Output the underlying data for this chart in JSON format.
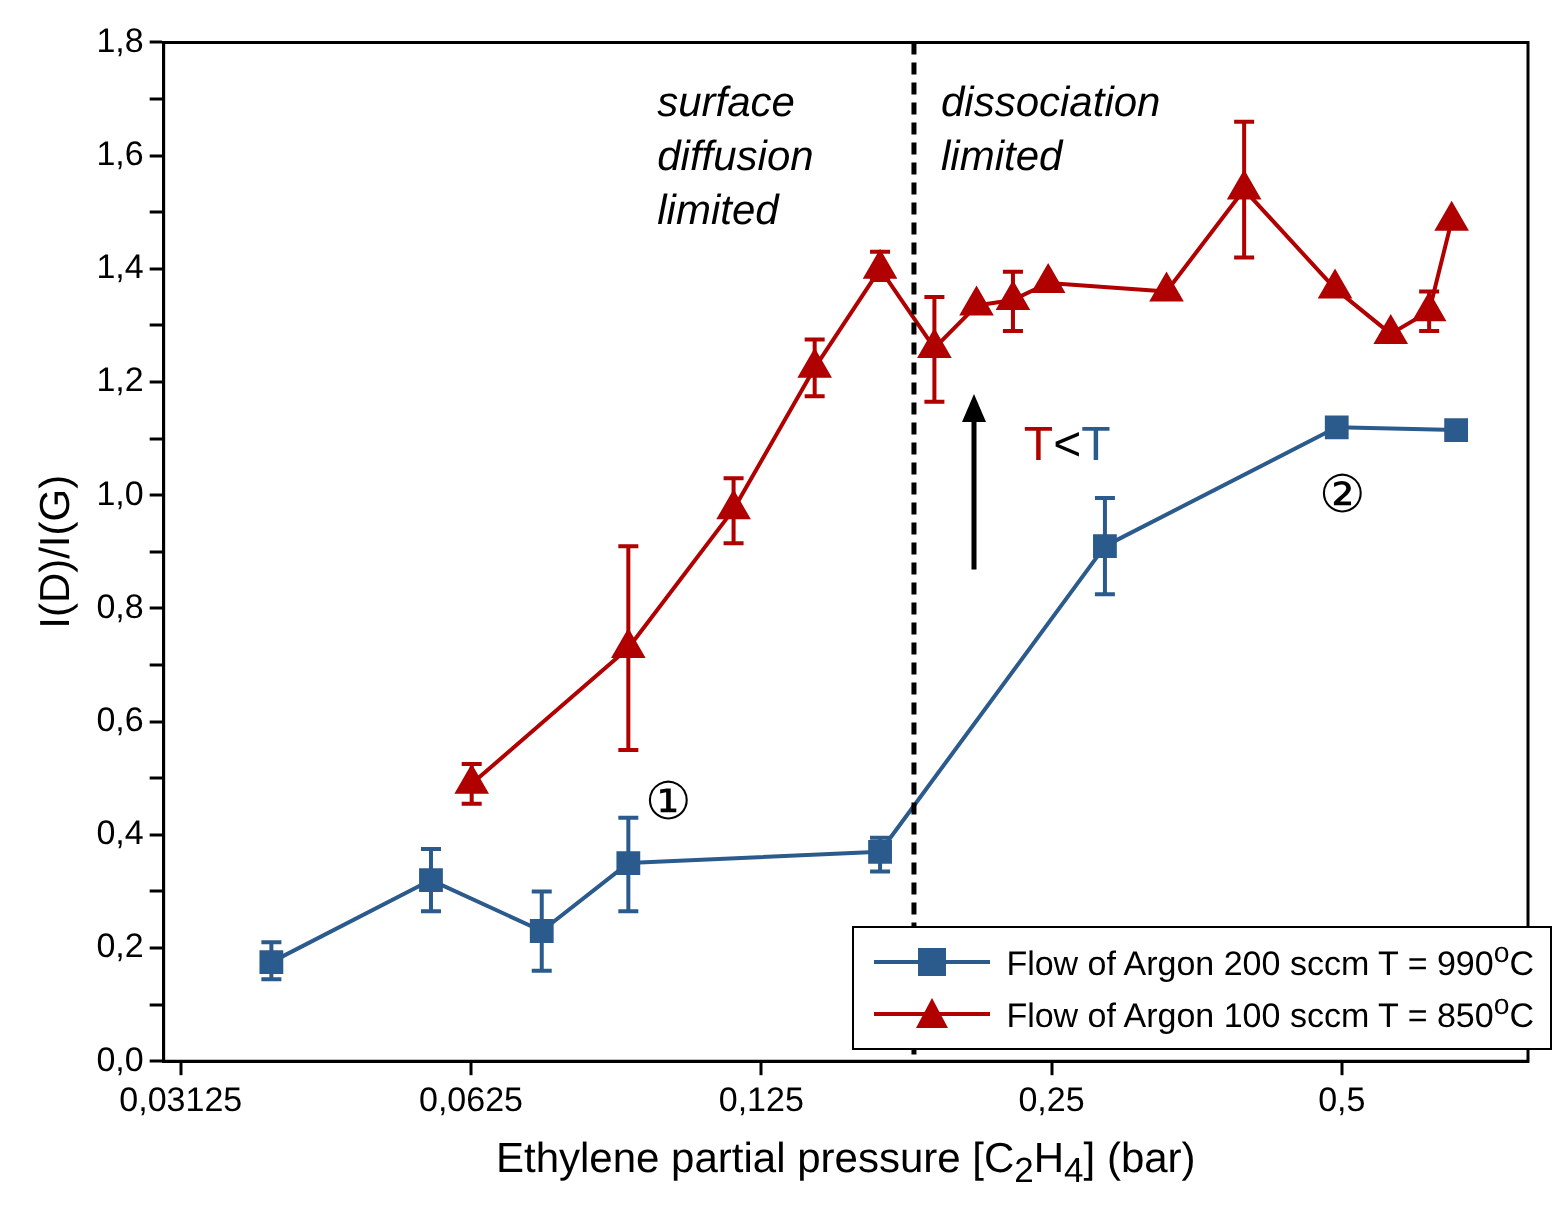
{
  "chart_data": {
    "type": "line",
    "xlabel": "Ethylene partial pressure [C$_{2}$H$_{4}$] (bar)",
    "ylabel": "I(D)/I(G)",
    "log": "x",
    "xlim": [
      0.03,
      0.78
    ],
    "xticks": [
      {
        "value": 0.03125,
        "label": "0,03125"
      },
      {
        "value": 0.0625,
        "label": "0,0625"
      },
      {
        "value": 0.125,
        "label": "0,125"
      },
      {
        "value": 0.25,
        "label": "0,25"
      },
      {
        "value": 0.5,
        "label": "0,5"
      }
    ],
    "ylim": [
      0,
      1.8
    ],
    "yticks": [
      {
        "value": 0,
        "label": "0,0"
      },
      {
        "value": 0.1,
        "label": null
      },
      {
        "value": 0.2,
        "label": "0,2"
      },
      {
        "value": 0.3,
        "label": null
      },
      {
        "value": 0.4,
        "label": "0,4"
      },
      {
        "value": 0.5,
        "label": null
      },
      {
        "value": 0.6,
        "label": "0,6"
      },
      {
        "value": 0.7,
        "label": null
      },
      {
        "value": 0.8,
        "label": "0,8"
      },
      {
        "value": 0.9,
        "label": null
      },
      {
        "value": 1.0,
        "label": "1,0"
      },
      {
        "value": 1.1,
        "label": null
      },
      {
        "value": 1.2,
        "label": "1,2"
      },
      {
        "value": 1.3,
        "label": null
      },
      {
        "value": 1.4,
        "label": "1,4"
      },
      {
        "value": 1.5,
        "label": null
      },
      {
        "value": 1.6,
        "label": "1,6"
      },
      {
        "value": 1.7,
        "label": null
      },
      {
        "value": 1.8,
        "label": "1,8"
      }
    ],
    "legend": "bottom right",
    "line_style": "solid",
    "series": [
      {
        "name": "Flow of Argon 200 sccm T = 990$^{o}$C",
        "color": "#2b5a8c",
        "marker": "square",
        "x": [
          0.0388,
          0.0568,
          0.074,
          0.091,
          0.166,
          0.284,
          0.494,
          0.657
        ],
        "values": [
          0.175,
          0.32,
          0.23,
          0.35,
          0.37,
          0.91,
          1.12,
          1.115
        ],
        "errors": [
          [
            0.145,
            0.21
          ],
          [
            0.265,
            0.375
          ],
          [
            0.16,
            0.3
          ],
          [
            0.265,
            0.43
          ],
          [
            0.335,
            0.395
          ],
          [
            0.825,
            0.995
          ],
          null,
          null
        ]
      },
      {
        "name": "Flow of Argon 100 sccm T = 850$^{o}$C",
        "color": "#b00000",
        "marker": "triangle",
        "x": [
          0.0626,
          0.091,
          0.117,
          0.142,
          0.166,
          0.189,
          0.209,
          0.228,
          0.248,
          0.329,
          0.396,
          0.492,
          0.562,
          0.616,
          0.65
        ],
        "values": [
          0.49,
          0.73,
          0.975,
          1.225,
          1.4,
          1.26,
          1.335,
          1.345,
          1.375,
          1.36,
          1.54,
          1.365,
          1.285,
          1.325,
          1.485
        ],
        "errors": [
          [
            0.455,
            0.525
          ],
          [
            0.55,
            0.91
          ],
          [
            0.915,
            1.03
          ],
          [
            1.175,
            1.275
          ],
          [
            1.38,
            1.43
          ],
          [
            1.165,
            1.35
          ],
          null,
          [
            1.29,
            1.395
          ],
          null,
          null,
          [
            1.42,
            1.66
          ],
          null,
          null,
          [
            1.29,
            1.36
          ],
          null
        ]
      }
    ],
    "ref_lines": [
      {
        "axis": "x",
        "value": 0.18,
        "label": null,
        "color": "#000000",
        "line_style": "dashed"
      }
    ],
    "annotations": [
      "surface diffusion limited",
      "dissociation limited",
      "①",
      "②",
      "T<T"
    ]
  }
}
